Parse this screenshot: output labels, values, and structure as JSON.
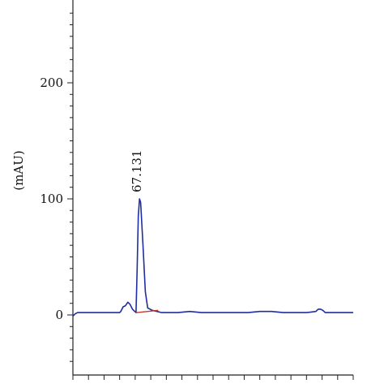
{
  "chart_data": {
    "type": "line",
    "title": "",
    "xlabel": "",
    "ylabel": "(mAU)",
    "ylim": [
      -50,
      270
    ],
    "xlim": [
      0,
      120
    ],
    "yticks": [
      {
        "value": 0,
        "label": "0"
      },
      {
        "value": 100,
        "label": "100"
      },
      {
        "value": 200,
        "label": "200"
      }
    ],
    "grid": false,
    "legend": "none",
    "colors": {
      "signal": "#1f2f9f",
      "baseline": "#c0392b",
      "axis": "#222222"
    },
    "series": [
      {
        "x": [
          0,
          1,
          2,
          5,
          10,
          15,
          20,
          20.5,
          21.5,
          22.5,
          23.5,
          24.5,
          25.5,
          26.5,
          27,
          27.5,
          28,
          28.5,
          29,
          30,
          31,
          32,
          34,
          36,
          38,
          40,
          45,
          50,
          55,
          60,
          65,
          70,
          75,
          80,
          85,
          90,
          95,
          100,
          104,
          105,
          106,
          107,
          108,
          110,
          115,
          120
        ],
        "y": [
          -1,
          1,
          2,
          2,
          2,
          2,
          2,
          3,
          7,
          8,
          11,
          9,
          5,
          3,
          2,
          40,
          85,
          100,
          97,
          60,
          20,
          6,
          4,
          3,
          2,
          2,
          2,
          3,
          2,
          2,
          2,
          2,
          2,
          3,
          3,
          2,
          2,
          2,
          3,
          5,
          5,
          4,
          2,
          2,
          2,
          2
        ]
      }
    ],
    "baseline_segment": {
      "x": [
        27,
        36.5
      ],
      "y": [
        2,
        4
      ]
    },
    "annotations": [
      {
        "label": "67.131",
        "x": 29.5,
        "y": 100
      }
    ]
  }
}
